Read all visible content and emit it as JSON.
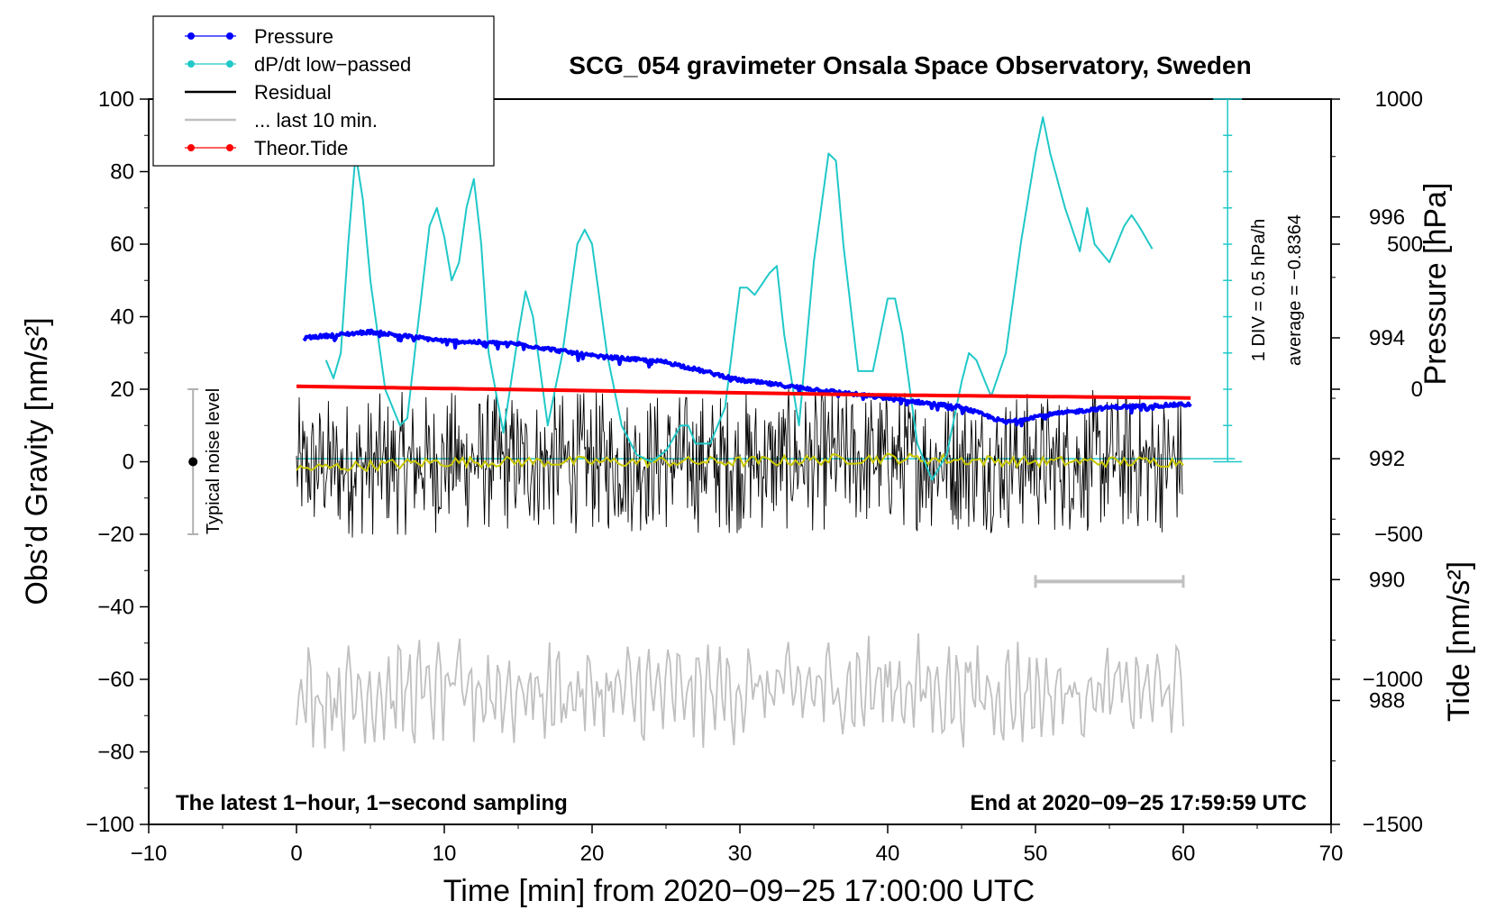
{
  "chart_data": {
    "type": "line",
    "title": "SCG_054 gravimeter Onsala Space Observatory, Sweden",
    "xlabel": "Time [min] from 2020−09−25 17:00:00 UTC",
    "ylabel_left": "Obs’d Gravity [nm/s²]",
    "ylabel_right_pressure": "Pressure [hPa]",
    "ylabel_right_tide": "Tide [nm/s²]",
    "xlim": [
      -10,
      70
    ],
    "ylim": [
      -100,
      100
    ],
    "pressure_ylim": [
      985.95,
      997.95
    ],
    "tide_ylim": [
      -1500,
      1000
    ],
    "x_ticks": [
      "−10",
      "0",
      "10",
      "20",
      "30",
      "40",
      "50",
      "60",
      "70"
    ],
    "y_ticks": [
      "100",
      "80",
      "60",
      "40",
      "20",
      "0",
      "−20",
      "−40",
      "−60",
      "−80",
      "−100"
    ],
    "pressure_ticks": [
      "996",
      "994",
      "992",
      "990",
      "988"
    ],
    "tide_ticks": [
      "1000",
      "500",
      "0",
      "−500",
      "−1000",
      "−1500"
    ],
    "legend": [
      {
        "label": "Pressure",
        "color": "#0000ff",
        "marker": "dot"
      },
      {
        "label": "dP/dt low−passed",
        "color": "#20c8c8",
        "marker": "dot"
      },
      {
        "label": "Residual",
        "color": "#000000",
        "marker": "line"
      },
      {
        "label": "... last 10 min.",
        "color": "#c0c0c0",
        "marker": "line"
      },
      {
        "label": "Theor.Tide",
        "color": "#ff0000",
        "marker": "dot"
      }
    ],
    "series": [
      {
        "name": "Pressure",
        "unit": "hPa",
        "x": [
          0.5,
          5,
          10,
          15,
          20,
          25,
          30,
          35,
          40,
          45,
          48,
          50,
          55,
          60.5
        ],
        "values": [
          994.0,
          994.1,
          993.95,
          993.9,
          993.7,
          993.6,
          993.3,
          993.15,
          993.0,
          992.85,
          992.6,
          992.7,
          992.85,
          992.9
        ]
      },
      {
        "name": "dP/dt low−passed",
        "x": [
          2,
          2.5,
          3,
          3.5,
          4,
          4.5,
          5,
          6,
          7,
          7.5,
          8,
          9,
          9.5,
          10,
          10.5,
          11,
          11.5,
          12,
          12.5,
          13,
          14,
          15,
          15.5,
          16,
          17,
          18,
          19,
          19.5,
          20,
          21,
          22,
          23,
          24,
          25,
          26,
          26.5,
          27,
          28,
          29,
          30,
          30.5,
          31,
          32,
          32.5,
          33,
          34,
          35,
          36,
          36.5,
          37,
          38,
          39,
          40,
          40.5,
          41,
          42,
          43,
          44,
          45,
          45.5,
          46,
          47,
          48,
          49,
          50,
          50.5,
          51,
          52,
          53,
          53.5,
          54,
          55,
          56,
          56.5,
          57,
          58
        ],
        "values": [
          28,
          23,
          30,
          60,
          85,
          72,
          50,
          20,
          10,
          12,
          30,
          65,
          70,
          62,
          50,
          55,
          70,
          78,
          60,
          30,
          8,
          35,
          47,
          40,
          10,
          30,
          60,
          64,
          60,
          30,
          10,
          2,
          0,
          3,
          10,
          10,
          5,
          5,
          15,
          48,
          48,
          46,
          52,
          54,
          35,
          10,
          55,
          85,
          83,
          60,
          25,
          25,
          45,
          45,
          35,
          5,
          -5,
          2,
          22,
          30,
          28,
          18,
          30,
          60,
          85,
          95,
          85,
          70,
          58,
          70,
          60,
          55,
          65,
          68,
          65,
          58
        ]
      },
      {
        "name": "Residual",
        "x": [
          0,
          10,
          20,
          30,
          40,
          50,
          60
        ],
        "values": [
          -2,
          0,
          0,
          0,
          1,
          0,
          0
        ],
        "band": [
          -20,
          20
        ]
      },
      {
        "name": "... last 10 min.",
        "x": [
          0,
          10,
          20,
          30,
          40,
          50,
          60
        ],
        "values": [
          -65,
          -63,
          -64,
          -63,
          -62,
          -64,
          -63
        ],
        "band": [
          -82,
          -42
        ]
      },
      {
        "name": "Theor.Tide",
        "unit": "nm/s²",
        "x": [
          0,
          20,
          40,
          60.5
        ],
        "values": [
          10,
          -5,
          -20,
          -30
        ]
      }
    ],
    "average_pressure_line": {
      "value": 992,
      "label": "average = −0.8364"
    },
    "scale_bar": {
      "label": "1 DIV = 0.5 hPa/h"
    },
    "noise_bar": {
      "x": -7,
      "range": [
        -20,
        20
      ],
      "label": "Typical noise level"
    },
    "last10_bar": {
      "range": [
        50,
        60
      ]
    },
    "annotations": {
      "bottom_left": "The latest 1−hour, 1−second sampling",
      "bottom_right": "End at 2020−09−25 17:59:59 UTC"
    }
  }
}
